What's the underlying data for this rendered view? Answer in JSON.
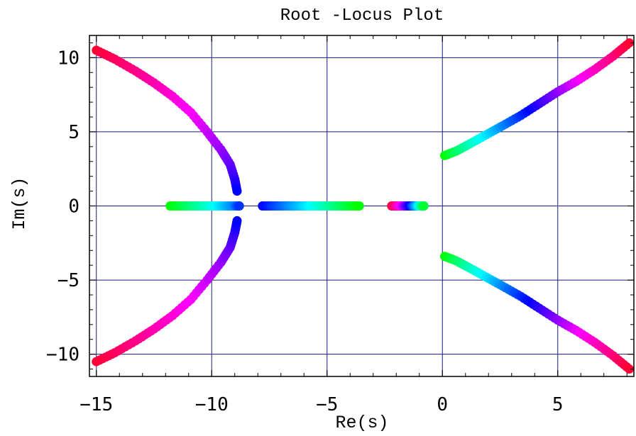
{
  "chart_data": {
    "type": "scatter",
    "title": "Root -Locus  Plot",
    "xlabel": "Re(s)",
    "ylabel": "Im(s)",
    "xlim": [
      -15.3,
      8.3
    ],
    "ylim": [
      -11.5,
      11.5
    ],
    "grid": true,
    "legend": "none",
    "x_ticks": [
      {
        "value": -15,
        "label": "-15"
      },
      {
        "value": -10,
        "label": "-10"
      },
      {
        "value": -5,
        "label": "-5"
      },
      {
        "value": 0,
        "label": "0"
      },
      {
        "value": 5,
        "label": "5"
      }
    ],
    "y_ticks": [
      {
        "value": 10,
        "label": "10"
      },
      {
        "value": 5,
        "label": "5"
      },
      {
        "value": 0,
        "label": "0"
      },
      {
        "value": -5,
        "label": "-5"
      },
      {
        "value": -10,
        "label": "-10"
      }
    ],
    "colors": {
      "grid": "#1a1a80",
      "frame": "#000000",
      "gradient": [
        "#00ff00",
        "#00ffff",
        "#0000ff",
        "#ff00ff",
        "#ff0033"
      ]
    },
    "series": [
      {
        "x": [
          -15.0,
          -14.2,
          -13.3,
          -12.5,
          -11.7,
          -10.9,
          -10.2,
          -9.6,
          -9.2,
          -9.0,
          -8.9
        ],
        "y": [
          10.5,
          9.9,
          9.1,
          8.3,
          7.4,
          6.3,
          5.0,
          3.8,
          2.8,
          1.8,
          1.0
        ]
      },
      {
        "x": [
          -15.0,
          -14.2,
          -13.3,
          -12.5,
          -11.7,
          -10.9,
          -10.2,
          -9.6,
          -9.2,
          -9.0,
          -8.9
        ],
        "y": [
          -10.5,
          -9.9,
          -9.1,
          -8.3,
          -7.4,
          -6.3,
          -5.0,
          -3.8,
          -2.8,
          -1.8,
          -1.0
        ]
      },
      {
        "x": [
          -11.8,
          -11.2,
          -10.6,
          -10.0,
          -9.5,
          -9.0,
          -8.8
        ],
        "y": [
          0,
          0,
          0,
          0,
          0,
          0,
          0
        ]
      },
      {
        "x": [
          -7.8,
          -7.2,
          -6.6,
          -6.0,
          -5.4,
          -4.8,
          -4.2,
          -3.6
        ],
        "y": [
          0,
          0,
          0,
          0,
          0,
          0,
          0,
          0
        ]
      },
      {
        "x": [
          -2.2,
          -1.9,
          -1.6,
          -1.3,
          -1.0,
          -0.8
        ],
        "y": [
          0,
          0,
          0,
          0,
          0,
          0
        ]
      },
      {
        "x": [
          0.1,
          0.6,
          1.2,
          1.9,
          2.6,
          3.4,
          4.2,
          5.0,
          5.8,
          6.6,
          7.4,
          8.1
        ],
        "y": [
          3.4,
          3.7,
          4.2,
          4.8,
          5.4,
          6.1,
          6.9,
          7.7,
          8.4,
          9.2,
          10.1,
          11.0
        ]
      },
      {
        "x": [
          0.1,
          0.6,
          1.2,
          1.9,
          2.6,
          3.4,
          4.2,
          5.0,
          5.8,
          6.6,
          7.4,
          8.1
        ],
        "y": [
          -3.4,
          -3.7,
          -4.2,
          -4.8,
          -5.4,
          -6.1,
          -6.9,
          -7.7,
          -8.4,
          -9.2,
          -10.1,
          -11.0
        ]
      }
    ]
  }
}
